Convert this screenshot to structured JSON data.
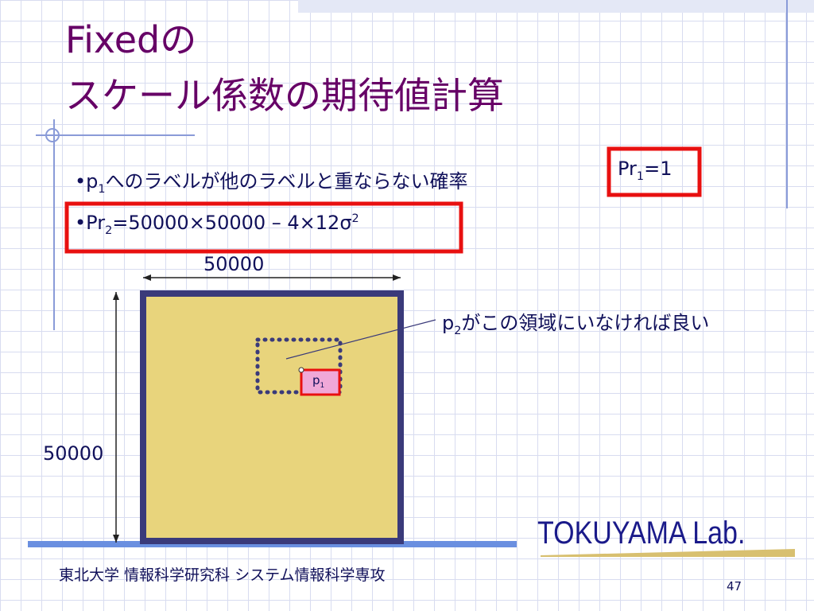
{
  "title": {
    "line1": "Fixedの",
    "line2": "スケール係数の期待値計算"
  },
  "bullet1": {
    "prefix": "•p",
    "sub": "1",
    "text": "へのラベルが他のラベルと重ならない確率"
  },
  "box1": {
    "prefix": "Pr",
    "sub": "1",
    "text": "=1"
  },
  "bullet2": {
    "prefix": "•Pr",
    "sub": "2",
    "text": "=50000×50000 – 4×12σ",
    "sup": "2"
  },
  "figure": {
    "width_label": "50000",
    "height_label": "50000",
    "callout": {
      "prefix": "p",
      "sub": "2",
      "text": "がこの領域にいなければ良い"
    },
    "point_label": {
      "prefix": "p",
      "sub": "1"
    }
  },
  "logo": "TOKUYAMA Lab.",
  "footer": "東北大学 情報科学研究科 システム情報科学専攻",
  "page_number": "47"
}
